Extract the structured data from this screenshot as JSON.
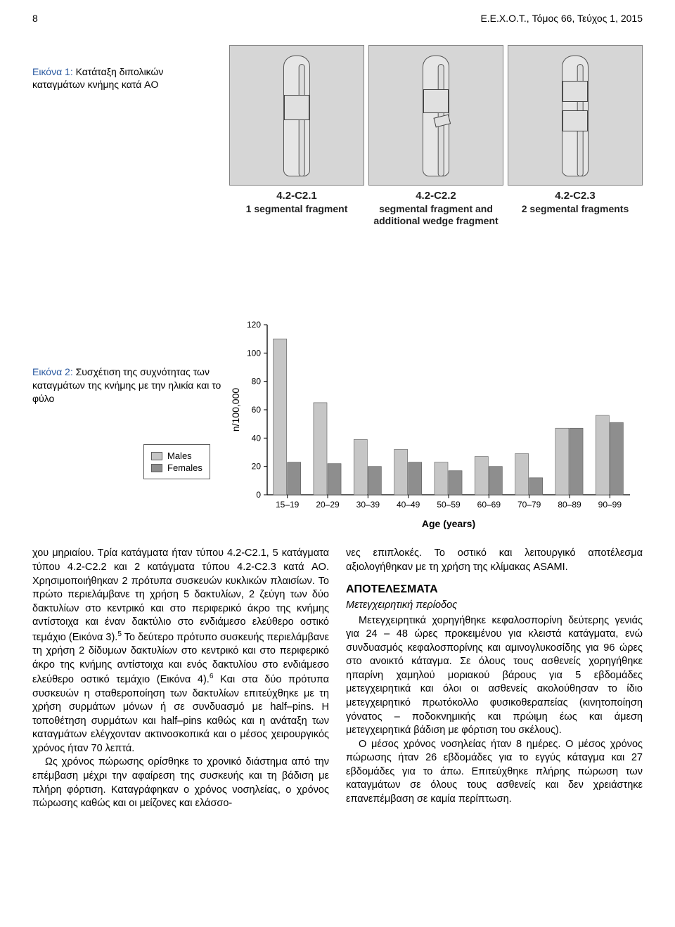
{
  "header": {
    "page_num": "8",
    "journal": "E.E.X.O.T., Τόμος 66, Τεύχος 1, 2015"
  },
  "ao_figure": {
    "panels": [
      {
        "code": "4.2-C2.1",
        "desc": "1 segmental fragment"
      },
      {
        "code": "4.2-C2.2",
        "desc": "segmental fragment and additional wedge fragment"
      },
      {
        "code": "4.2-C2.3",
        "desc": "2 segmental fragments"
      }
    ]
  },
  "fig1_caption": {
    "label": "Εικόνα 1:",
    "text": " Κατάταξη διπολικών καταγμάτων κνήμης κατά AO"
  },
  "fig2_caption": {
    "label": "Εικόνα 2:",
    "text": " Συσχέτιση της συχνότητας των καταγμάτων της κνήμης με την ηλικία και το φύλο"
  },
  "age_chart": {
    "type": "bar",
    "categories": [
      "15–19",
      "20–29",
      "30–39",
      "40–49",
      "50–59",
      "60–69",
      "70–79",
      "80–89",
      "90–99"
    ],
    "series": [
      {
        "name": "Males",
        "color": "#c6c6c6",
        "values": [
          110,
          65,
          39,
          32,
          23,
          27,
          29,
          47,
          56
        ]
      },
      {
        "name": "Females",
        "color": "#8e8e8e",
        "values": [
          23,
          22,
          20,
          23,
          17,
          20,
          12,
          47,
          51
        ]
      }
    ],
    "ylabel": "n/100,000",
    "xlabel": "Age (years)",
    "ylim": [
      0,
      120
    ],
    "ytick_step": 20,
    "background_color": "#ffffff",
    "axis_color": "#000000",
    "label_fontsize": 14,
    "tick_fontsize": 12,
    "bar_group_width": 0.7,
    "legend_position": "left",
    "legend_box_stroke": "#5b5b5b",
    "legend_box_fill": "#ffffff"
  },
  "left_col": {
    "para1": "χου μηριαίου. Τρία κατάγματα ήταν τύπου 4.2-C2.1, 5 κατάγματα τύπου 4.2-C2.2 και 2 κατάγματα τύπου 4.2-C2.3 κατά AO. Χρησιμοποιήθηκαν 2 πρότυπα συσκευών κυκλικών πλαισίων. Το πρώτο περιελάμβανε τη χρήση 5 δακτυλίων, 2 ζεύγη των δύο δακτυλίων στο κεντρικό και στο περιφερικό άκρο της κνήμης αντίστοιχα και έναν δακτύλιο στο ενδιάμεσο ελεύθερο οστικό τεμάχιο (Εικόνα 3).",
    "para1b": " Το δεύτερο πρότυπο συσκευής περιελάμβανε τη χρήση 2 δίδυμων δακτυλίων στο κεντρικό και στο περιφερικό άκρο της κνήμης αντίστοιχα και ενός δακτυλίου στο ενδιάμεσο ελεύθερο οστικό τεμάχιο (Εικόνα 4).",
    "para1c": " Και στα δύο πρότυπα συσκευών η σταθεροποίηση των δακτυλίων επιτεύχθηκε με τη χρήση συρμάτων μόνων ή σε συνδυασμό με half–pins. Η τοποθέτηση συρμάτων και half–pins καθώς και η ανάταξη των καταγμάτων ελέγχονταν ακτινοσκοπικά και ο μέσος χειρουργικός χρόνος ήταν 70 λεπτά.",
    "para2": "Ως χρόνος πώρωσης ορίσθηκε το χρονικό διάστημα από την επέμβαση μέχρι την αφαίρεση της συσκευής και τη βάδιση με πλήρη φόρτιση. Καταγράφηκαν ο χρόνος νοσηλείας, ο χρόνος πώρωσης καθώς και οι μείζονες και ελάσσο-",
    "sup1": "5",
    "sup2": "6"
  },
  "right_col": {
    "para1": "νες επιπλοκές. Το οστικό και λειτουργικό αποτέλεσμα αξιολογήθηκαν με τη χρήση της κλίμακας ASAMI.",
    "section": "ΑΠΟΤΕΛΕΣΜΑΤΑ",
    "sub": "Μετεγχειρητική περίοδος",
    "para2": "Μετεγχειρητικά χορηγήθηκε κεφαλοσπορίνη δεύτερης γενιάς για 24 – 48 ώρες προκειμένου για κλειστά κατάγματα, ενώ συνδυασμός κεφαλοσπορίνης και αμινογλυκοσίδης για 96 ώρες στο ανοικτό κάταγμα. Σε όλους τους ασθενείς χορηγήθηκε ηπαρίνη χαμηλού μοριακού βάρους για 5 εβδομάδες μετεγχειρητικά και όλοι οι ασθενείς ακολούθησαν το ίδιο μετεγχειρητικό πρωτόκολλο φυσικοθεραπείας (κινητοποίηση γόνατος – ποδοκνημικής και πρώιμη έως και άμεση μετεγχειρητικά βάδιση με φόρτιση του σκέλους).",
    "para3": "Ο μέσος χρόνος νοσηλείας ήταν 8 ημέρες. Ο μέσος χρόνος πώρωσης ήταν 26 εβδομάδες για το εγγύς κάταγμα και 27 εβδομάδες για το άπω. Επιτεύχθηκε πλήρης πώρωση των καταγμάτων σε όλους τους ασθενείς και δεν χρειάστηκε επανεπέμβαση σε καμία περίπτωση."
  }
}
